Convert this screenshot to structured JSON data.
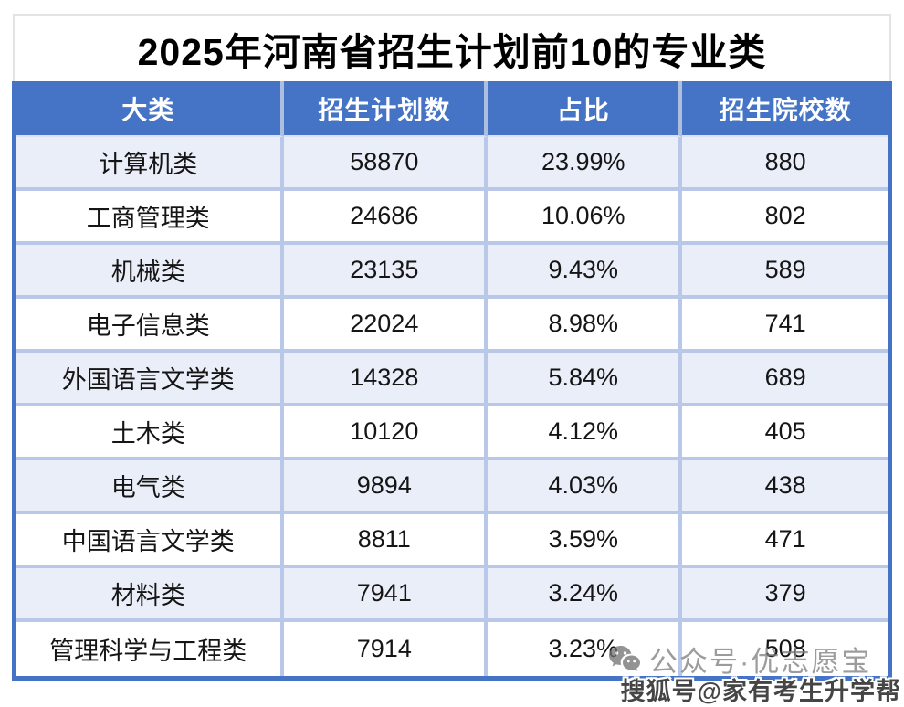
{
  "title": "2025年河南省招生计划前10的专业类",
  "table": {
    "columns": [
      "大类",
      "招生计划数",
      "占比",
      "招生院校数"
    ],
    "rows": [
      [
        "计算机类",
        "58870",
        "23.99%",
        "880"
      ],
      [
        "工商管理类",
        "24686",
        "10.06%",
        "802"
      ],
      [
        "机械类",
        "23135",
        "9.43%",
        "589"
      ],
      [
        "电子信息类",
        "22024",
        "8.98%",
        "741"
      ],
      [
        "外国语言文学类",
        "14328",
        "5.84%",
        "689"
      ],
      [
        "土木类",
        "10120",
        "4.12%",
        "405"
      ],
      [
        "电气类",
        "9894",
        "4.03%",
        "438"
      ],
      [
        "中国语言文学类",
        "8811",
        "3.59%",
        "471"
      ],
      [
        "材料类",
        "7941",
        "3.24%",
        "379"
      ],
      [
        "管理科学与工程类",
        "7914",
        "3.23%",
        "508"
      ]
    ]
  },
  "chart_data": {
    "type": "table",
    "title": "2025年河南省招生计划前10的专业类",
    "columns": [
      "大类",
      "招生计划数",
      "占比",
      "招生院校数"
    ],
    "categories": [
      "计算机类",
      "工商管理类",
      "机械类",
      "电子信息类",
      "外国语言文学类",
      "土木类",
      "电气类",
      "中国语言文学类",
      "材料类",
      "管理科学与工程类"
    ],
    "series": [
      {
        "name": "招生计划数",
        "values": [
          58870,
          24686,
          23135,
          22024,
          14328,
          10120,
          9894,
          8811,
          7941,
          7914
        ]
      },
      {
        "name": "占比",
        "values": [
          "23.99%",
          "10.06%",
          "9.43%",
          "8.98%",
          "5.84%",
          "4.12%",
          "4.03%",
          "3.59%",
          "3.24%",
          "3.23%"
        ]
      },
      {
        "name": "招生院校数",
        "values": [
          880,
          802,
          589,
          741,
          689,
          405,
          438,
          471,
          379,
          508
        ]
      }
    ]
  },
  "watermarks": {
    "wechat": "公众号·优志愿宝",
    "sohu": "搜狐号@家有考生升学帮"
  },
  "colors": {
    "header_bg": "#4573C6",
    "header_text": "#FFFFFF",
    "header_separator": "#AEBEDF",
    "row_alt_bg": "#EAEEF8",
    "row_bg": "#FFFFFF",
    "grid_separator": "#B9C8E9",
    "outer_border": "#4573C6",
    "title_text": "#000000",
    "title_border": "#E3E3E3"
  }
}
